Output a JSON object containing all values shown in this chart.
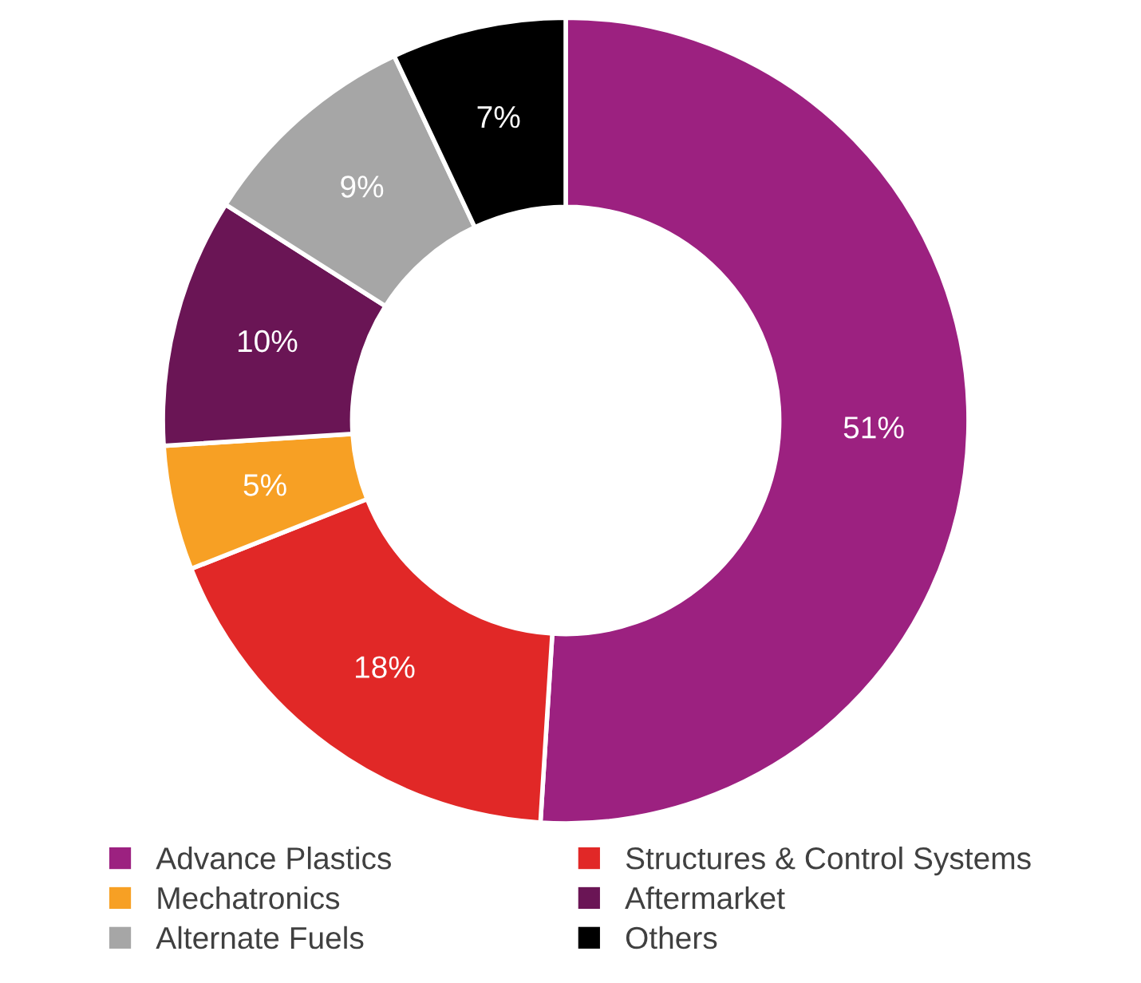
{
  "chart_data": {
    "type": "donut",
    "categories": [
      "Advance Plastics",
      "Structures & Control Systems",
      "Mechatronics",
      "Aftermarket",
      "Alternate Fuels",
      "Others"
    ],
    "values": [
      51,
      18,
      5,
      10,
      9,
      7
    ],
    "colors": [
      "#9c2180",
      "#e12827",
      "#f7a024",
      "#6a1555",
      "#a6a6a6",
      "#000000"
    ],
    "value_labels": [
      "51%",
      "18%",
      "5%",
      "10%",
      "9%",
      "7%"
    ],
    "legend": "bottom"
  }
}
